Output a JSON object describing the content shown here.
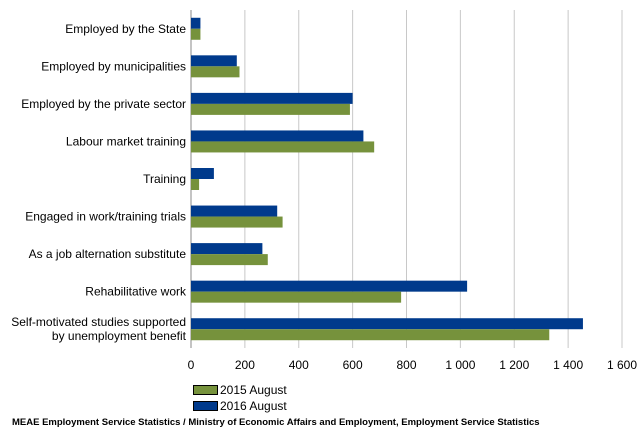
{
  "chart_data": {
    "type": "bar",
    "orientation": "horizontal",
    "categories": [
      "Employed by the State",
      "Employed by municipalities",
      "Employed by the private sector",
      "Labour market training",
      "Training",
      "Engaged in work/training trials",
      "As a job alternation substitute",
      "Rehabilitative work",
      "Self-motivated studies supported\nby unemployment benefit"
    ],
    "series": [
      {
        "name": "2016 August",
        "color": "#003a8c",
        "values": [
          35,
          170,
          600,
          640,
          85,
          320,
          265,
          1025,
          1455
        ]
      },
      {
        "name": "2015 August",
        "color": "#76923c",
        "values": [
          35,
          180,
          590,
          680,
          30,
          340,
          285,
          780,
          1330
        ]
      }
    ],
    "xlim": [
      0,
      1600
    ],
    "ticks": [
      0,
      200,
      400,
      600,
      800,
      1000,
      1200,
      1400,
      1600
    ],
    "tick_labels": [
      "0",
      "200",
      "400",
      "600",
      "800",
      "1 000",
      "1 200",
      "1 400",
      "1 600"
    ],
    "grid": true,
    "legend_position": "bottom"
  },
  "legend": {
    "items": [
      {
        "label": "2015 August",
        "color": "#76923c"
      },
      {
        "label": "2016 August",
        "color": "#003a8c"
      }
    ]
  },
  "source": "MEAE Employment Service Statistics / Ministry of Economic Affairs and Employment, Employment Service Statistics"
}
